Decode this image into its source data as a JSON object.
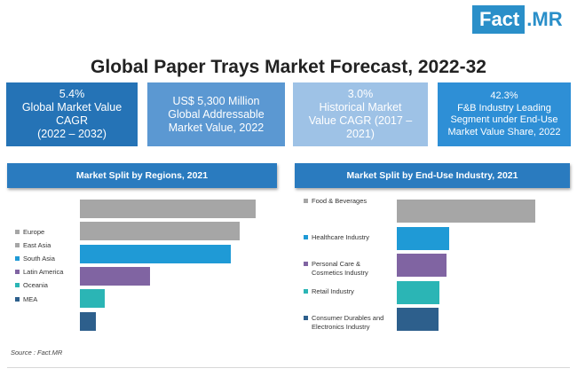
{
  "logo": {
    "fact": "Fact",
    "mr": ".MR"
  },
  "title": "Global Paper Trays Market Forecast, 2022-32",
  "stats": [
    {
      "lines": [
        "5.4%",
        "Global Market Value",
        "CAGR",
        "(2022 – 2032)"
      ]
    },
    {
      "lines": [
        "US$ 5,300 Million",
        "Global Addressable",
        "Market Value, 2022"
      ]
    },
    {
      "lines": [
        "3.0%",
        "Historical Market",
        "Value CAGR (2017 –",
        "2021)"
      ]
    },
    {
      "lines": [
        "42.3%",
        "F&B Industry Leading",
        "Segment under End-Use",
        "Market Value Share, 2022"
      ]
    }
  ],
  "source": "Source : Fact.MR",
  "chart_data": [
    {
      "type": "bar",
      "orientation": "horizontal",
      "title": "Market Split by Regions, 2021",
      "categories": [
        "Europe",
        "East Asia",
        "South Asia",
        "Latin America",
        "Oceania",
        "MEA"
      ],
      "values": [
        100,
        91,
        86,
        40,
        14,
        9
      ],
      "colors": [
        "#a6a6a6",
        "#a6a6a6",
        "#1f9ad6",
        "#8064a2",
        "#2bb5b5",
        "#2d5f8c"
      ],
      "xlim": [
        0,
        100
      ],
      "grid": false,
      "legend": "left"
    },
    {
      "type": "bar",
      "orientation": "horizontal",
      "title": "Market Split by End-Use Industry, 2021",
      "categories": [
        "Food & Beverages",
        "Healthcare Industry",
        "Personal Care & Cosmetics Industry",
        "Retail Industry",
        "Consumer Durables and Electronics Industry"
      ],
      "category_lines": [
        [
          "Food & Beverages"
        ],
        [
          "Healthcare Industry"
        ],
        [
          "Personal Care &",
          "Cosmetics Industry"
        ],
        [
          "Retail Industry"
        ],
        [
          "Consumer Durables and",
          "Electronics Industry"
        ]
      ],
      "values": [
        100,
        38,
        36,
        31,
        30
      ],
      "colors": [
        "#a6a6a6",
        "#1f9ad6",
        "#8064a2",
        "#2bb5b5",
        "#2d5f8c"
      ],
      "xlim": [
        0,
        100
      ],
      "grid": false,
      "legend": "inline"
    }
  ]
}
